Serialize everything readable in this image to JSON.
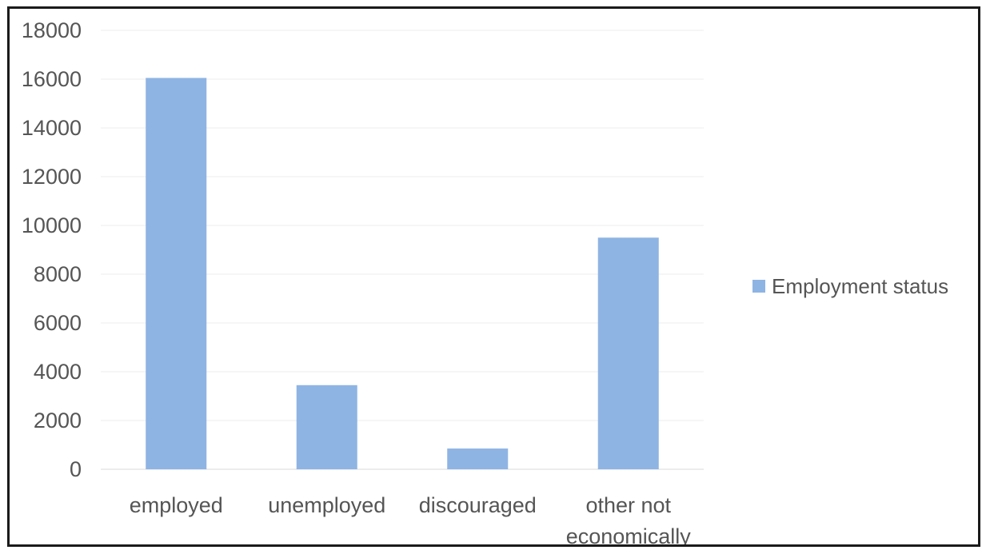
{
  "chart_data": {
    "type": "bar",
    "categories": [
      "employed",
      "unemployed",
      "discouraged",
      "other not economically"
    ],
    "series": [
      {
        "name": "Employment status",
        "values": [
          16050,
          3450,
          850,
          9500
        ],
        "color": "#8eb4e3"
      }
    ],
    "ylim": [
      0,
      18000
    ],
    "yticks": [
      "0",
      "2000",
      "4000",
      "6000",
      "8000",
      "10000",
      "12000",
      "14000",
      "16000",
      "18000"
    ],
    "grid": true,
    "gridline_color": "#ececec",
    "legend_position": "right",
    "title": "",
    "xlabel": "",
    "ylabel": ""
  }
}
